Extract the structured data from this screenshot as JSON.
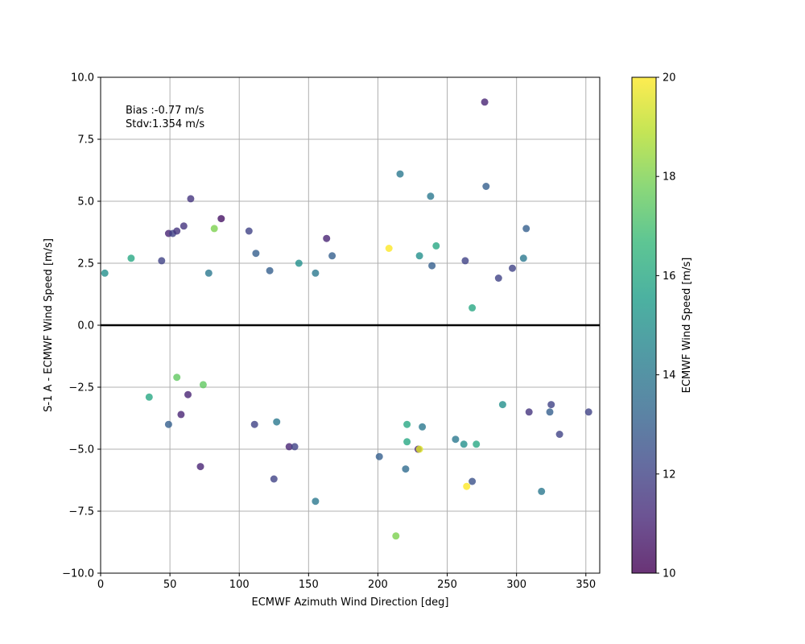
{
  "chart_data": {
    "type": "scatter",
    "title": "",
    "xlabel": "ECMWF Azimuth Wind Direction [deg]",
    "ylabel": "S-1 A - ECMWF Wind Speed [m/s]",
    "xlim": [
      0,
      360
    ],
    "ylim": [
      -10,
      10
    ],
    "xticks": [
      0,
      50,
      100,
      150,
      200,
      250,
      300,
      350
    ],
    "yticks": [
      -10.0,
      -7.5,
      -5.0,
      -2.5,
      0.0,
      2.5,
      5.0,
      7.5,
      10.0
    ],
    "ytick_labels": [
      "−10.0",
      "−7.5",
      "−5.0",
      "−2.5",
      "0.0",
      "2.5",
      "5.0",
      "7.5",
      "10.0"
    ],
    "grid": true,
    "reference_line_y": 0,
    "annotations": {
      "bias": "Bias :-0.77 m/s",
      "stdv": "Stdv:1.354 m/s"
    },
    "colorbar": {
      "label": "ECMWF Wind Speed [m/s]",
      "range": [
        10,
        20
      ],
      "ticks": [
        10,
        12,
        14,
        16,
        18,
        20
      ],
      "colormap": "viridis",
      "colors": [
        "#440154",
        "#482878",
        "#3e4989",
        "#31688e",
        "#26828e",
        "#1f9e89",
        "#35b779",
        "#6ece58",
        "#b5de2b",
        "#fde725"
      ]
    },
    "marker_alpha": 0.8,
    "points": [
      [
        277,
        9.0,
        11.0
      ],
      [
        216,
        6.1,
        14.0
      ],
      [
        278,
        5.6,
        13.0
      ],
      [
        238,
        5.2,
        14.0
      ],
      [
        65,
        5.1,
        11.5
      ],
      [
        87,
        4.3,
        10.5
      ],
      [
        60,
        4.0,
        11.5
      ],
      [
        307,
        3.9,
        13.0
      ],
      [
        82,
        3.9,
        18.0
      ],
      [
        107,
        3.8,
        12.0
      ],
      [
        49,
        3.7,
        11.0
      ],
      [
        52,
        3.7,
        12.0
      ],
      [
        163,
        3.5,
        11.0
      ],
      [
        242,
        3.2,
        16.0
      ],
      [
        208,
        3.1,
        20.0
      ],
      [
        112,
        2.9,
        13.0
      ],
      [
        230,
        2.8,
        15.0
      ],
      [
        167,
        2.8,
        13.0
      ],
      [
        263,
        2.6,
        12.0
      ],
      [
        22,
        2.7,
        16.0
      ],
      [
        44,
        2.6,
        12.0
      ],
      [
        305,
        2.7,
        14.0
      ],
      [
        143,
        2.5,
        15.0
      ],
      [
        239,
        2.4,
        13.0
      ],
      [
        3,
        2.1,
        15.0
      ],
      [
        78,
        2.1,
        14.0
      ],
      [
        297,
        2.3,
        12.0
      ],
      [
        122,
        2.2,
        13.0
      ],
      [
        155,
        2.1,
        14.0
      ],
      [
        287,
        1.9,
        12.0
      ],
      [
        55,
        3.8,
        11.5
      ],
      [
        268,
        0.7,
        16.0
      ],
      [
        213,
        -8.5,
        18.0
      ],
      [
        155,
        -7.1,
        14.0
      ],
      [
        264,
        -6.5,
        20.0
      ],
      [
        318,
        -6.7,
        14.0
      ],
      [
        72,
        -5.7,
        11.0
      ],
      [
        125,
        -6.2,
        12.0
      ],
      [
        268,
        -6.3,
        12.5
      ],
      [
        201,
        -5.3,
        13.0
      ],
      [
        220,
        -5.8,
        13.5
      ],
      [
        136,
        -4.9,
        11.0
      ],
      [
        140,
        -4.9,
        12.0
      ],
      [
        229,
        -5.0,
        11.0
      ],
      [
        230,
        -5.0,
        19.5
      ],
      [
        221,
        -4.7,
        16.0
      ],
      [
        271,
        -4.8,
        16.0
      ],
      [
        262,
        -4.8,
        15.0
      ],
      [
        256,
        -4.6,
        14.0
      ],
      [
        331,
        -4.4,
        12.0
      ],
      [
        49,
        -4.0,
        13.0
      ],
      [
        111,
        -4.0,
        12.0
      ],
      [
        127,
        -3.9,
        14.0
      ],
      [
        232,
        -4.1,
        14.0
      ],
      [
        221,
        -4.0,
        16.0
      ],
      [
        58,
        -3.6,
        11.0
      ],
      [
        309,
        -3.5,
        11.5
      ],
      [
        324,
        -3.5,
        13.0
      ],
      [
        352,
        -3.5,
        12.0
      ],
      [
        290,
        -3.2,
        15.0
      ],
      [
        55,
        -2.1,
        17.5
      ],
      [
        74,
        -2.4,
        17.5
      ],
      [
        35,
        -2.9,
        16.0
      ],
      [
        63,
        -2.8,
        11.0
      ],
      [
        325,
        -3.2,
        12.0
      ]
    ]
  }
}
